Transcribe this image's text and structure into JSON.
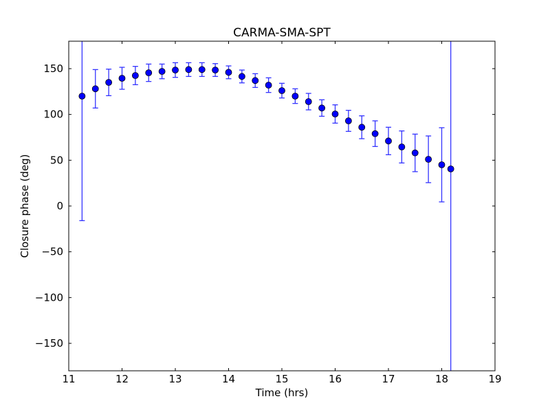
{
  "chart_data": {
    "type": "scatter",
    "title": "CARMA-SMA-SPT",
    "xlabel": "Time (hrs)",
    "ylabel": "Closure phase (deg)",
    "xlim": [
      11,
      19
    ],
    "ylim": [
      -180,
      180
    ],
    "xticks": [
      11,
      12,
      13,
      14,
      15,
      16,
      17,
      18,
      19
    ],
    "yticks": [
      -150,
      -100,
      -50,
      0,
      50,
      100,
      150
    ],
    "ytick_labels": [
      "−150",
      "−100",
      "−50",
      "0",
      "50",
      "100",
      "150"
    ],
    "grid": false,
    "colors": {
      "marker": "#0000ff",
      "errorbar": "#3333ff",
      "edge": "#000000"
    },
    "series": [
      {
        "name": "CARMA-SMA-SPT",
        "x": [
          11.25,
          11.5,
          11.75,
          12.0,
          12.25,
          12.5,
          12.75,
          13.0,
          13.25,
          13.5,
          13.75,
          14.0,
          14.25,
          14.5,
          14.75,
          15.0,
          15.25,
          15.5,
          15.75,
          16.0,
          16.25,
          16.5,
          16.75,
          17.0,
          17.25,
          17.5,
          17.75,
          18.0,
          18.17
        ],
        "y": [
          120,
          128,
          135,
          139.5,
          142.5,
          145.5,
          147,
          148.5,
          149,
          149,
          148.5,
          146,
          141.5,
          137,
          132,
          126,
          120,
          114,
          107,
          100.5,
          93,
          86,
          79,
          71,
          64.5,
          58,
          51,
          45,
          40.5
        ],
        "yerr": [
          136,
          21,
          14.5,
          12,
          10,
          9.5,
          8,
          8,
          7.5,
          7.5,
          7,
          7,
          7,
          7.5,
          8,
          8,
          8,
          9,
          9,
          10,
          11.5,
          12.5,
          14,
          15,
          17.5,
          20.5,
          25.5,
          40.5,
          300
        ]
      }
    ]
  }
}
